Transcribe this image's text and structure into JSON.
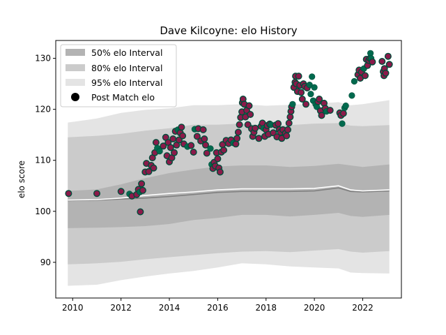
{
  "chart_data": {
    "type": "scatter",
    "title": "Dave Kilcoyne: elo History",
    "xlabel": "",
    "ylabel": "elo score",
    "xlim": [
      2009.3,
      2023.6
    ],
    "ylim": [
      83.0,
      133.5
    ],
    "x_ticks": [
      2010,
      2012,
      2014,
      2016,
      2018,
      2020,
      2022
    ],
    "y_ticks": [
      90,
      100,
      110,
      120,
      130
    ],
    "legend": {
      "position": "top-left",
      "entries": [
        "50% elo Interval",
        "80% elo Interval",
        "95% elo Interval",
        "Post Match elo"
      ]
    },
    "colors": {
      "win": "#006a4e",
      "loss": "#8b1a4a",
      "band50": "#b3b3b3",
      "band80": "#cbcbcb",
      "band95": "#e4e4e4",
      "median": "#808080",
      "mean": "#ffffff"
    },
    "band_x": [
      2009.8,
      2011.0,
      2012.0,
      2013.0,
      2014.0,
      2015.0,
      2016.0,
      2017.0,
      2018.0,
      2019.0,
      2020.0,
      2021.0,
      2021.5,
      2022.0,
      2023.1
    ],
    "band_50_upper": [
      104.0,
      104.3,
      105.3,
      106.5,
      107.5,
      108.2,
      108.8,
      109.0,
      109.0,
      108.7,
      108.9,
      109.3,
      109.0,
      108.7,
      109.2
    ],
    "band_50_lower": [
      96.7,
      96.8,
      96.9,
      97.1,
      97.5,
      98.3,
      98.7,
      99.3,
      99.3,
      99.0,
      99.3,
      99.7,
      99.1,
      98.9,
      99.3
    ],
    "band_80_upper": [
      114.5,
      114.8,
      115.2,
      115.8,
      116.3,
      117.0,
      117.0,
      117.2,
      116.8,
      116.9,
      117.2,
      117.3,
      116.8,
      116.7,
      116.9
    ],
    "band_80_lower": [
      89.6,
      89.8,
      90.1,
      90.6,
      91.0,
      91.4,
      91.8,
      92.1,
      92.2,
      92.0,
      92.3,
      92.6,
      92.1,
      91.9,
      92.2
    ],
    "band_95_upper": [
      117.4,
      118.2,
      119.3,
      119.9,
      120.2,
      120.8,
      120.8,
      121.0,
      120.7,
      120.9,
      121.1,
      121.4,
      120.8,
      121.0,
      121.8
    ],
    "band_95_lower": [
      85.4,
      85.6,
      86.5,
      87.2,
      87.8,
      88.3,
      89.0,
      89.8,
      89.6,
      89.2,
      89.0,
      88.8,
      88.0,
      87.9,
      87.8
    ],
    "median_line": [
      102.1,
      102.2,
      102.4,
      102.6,
      102.9,
      103.3,
      103.7,
      103.9,
      103.9,
      103.9,
      104.0,
      104.6,
      103.9,
      103.8,
      104.0
    ],
    "mean_line": [
      102.2,
      102.3,
      102.6,
      103.1,
      103.5,
      103.8,
      104.2,
      104.4,
      104.4,
      104.4,
      104.5,
      105.0,
      104.2,
      104.0,
      104.2
    ],
    "points": [
      {
        "x": 2009.83,
        "y": 103.5,
        "result": "loss"
      },
      {
        "x": 2011.0,
        "y": 103.5,
        "result": "loss"
      },
      {
        "x": 2012.0,
        "y": 103.9,
        "result": "loss"
      },
      {
        "x": 2012.35,
        "y": 103.4,
        "result": "win"
      },
      {
        "x": 2012.45,
        "y": 103.0,
        "result": "loss"
      },
      {
        "x": 2012.65,
        "y": 103.3,
        "result": "loss"
      },
      {
        "x": 2012.72,
        "y": 104.3,
        "result": "loss"
      },
      {
        "x": 2012.78,
        "y": 103.8,
        "result": "win"
      },
      {
        "x": 2012.8,
        "y": 99.9,
        "result": "loss"
      },
      {
        "x": 2012.85,
        "y": 105.4,
        "result": "loss"
      },
      {
        "x": 2012.9,
        "y": 104.1,
        "result": "loss"
      },
      {
        "x": 2013.0,
        "y": 107.7,
        "result": "loss"
      },
      {
        "x": 2013.05,
        "y": 109.4,
        "result": "loss"
      },
      {
        "x": 2013.15,
        "y": 107.8,
        "result": "loss"
      },
      {
        "x": 2013.25,
        "y": 109.0,
        "result": "loss"
      },
      {
        "x": 2013.3,
        "y": 110.5,
        "result": "loss"
      },
      {
        "x": 2013.35,
        "y": 108.5,
        "result": "loss"
      },
      {
        "x": 2013.4,
        "y": 111.5,
        "result": "loss"
      },
      {
        "x": 2013.45,
        "y": 113.5,
        "result": "loss"
      },
      {
        "x": 2013.5,
        "y": 112.4,
        "result": "win"
      },
      {
        "x": 2013.6,
        "y": 111.8,
        "result": "win"
      },
      {
        "x": 2013.75,
        "y": 112.8,
        "result": "loss"
      },
      {
        "x": 2013.85,
        "y": 114.5,
        "result": "loss"
      },
      {
        "x": 2013.9,
        "y": 110.9,
        "result": "loss"
      },
      {
        "x": 2013.95,
        "y": 113.5,
        "result": "loss"
      },
      {
        "x": 2014.0,
        "y": 109.7,
        "result": "loss"
      },
      {
        "x": 2014.05,
        "y": 112.5,
        "result": "loss"
      },
      {
        "x": 2014.1,
        "y": 110.5,
        "result": "loss"
      },
      {
        "x": 2014.15,
        "y": 114.2,
        "result": "loss"
      },
      {
        "x": 2014.2,
        "y": 111.5,
        "result": "loss"
      },
      {
        "x": 2014.25,
        "y": 115.7,
        "result": "loss"
      },
      {
        "x": 2014.3,
        "y": 113.0,
        "result": "loss"
      },
      {
        "x": 2014.35,
        "y": 116.0,
        "result": "win"
      },
      {
        "x": 2014.4,
        "y": 114.0,
        "result": "loss"
      },
      {
        "x": 2014.45,
        "y": 115.4,
        "result": "loss"
      },
      {
        "x": 2014.5,
        "y": 116.5,
        "result": "loss"
      },
      {
        "x": 2014.55,
        "y": 114.8,
        "result": "loss"
      },
      {
        "x": 2014.6,
        "y": 113.2,
        "result": "loss"
      },
      {
        "x": 2014.75,
        "y": 112.7,
        "result": "win"
      },
      {
        "x": 2014.9,
        "y": 112.9,
        "result": "loss"
      },
      {
        "x": 2015.0,
        "y": 111.6,
        "result": "loss"
      },
      {
        "x": 2015.05,
        "y": 116.1,
        "result": "win"
      },
      {
        "x": 2015.15,
        "y": 114.7,
        "result": "loss"
      },
      {
        "x": 2015.2,
        "y": 116.2,
        "result": "loss"
      },
      {
        "x": 2015.3,
        "y": 113.8,
        "result": "loss"
      },
      {
        "x": 2015.4,
        "y": 116.0,
        "result": "loss"
      },
      {
        "x": 2015.45,
        "y": 114.2,
        "result": "loss"
      },
      {
        "x": 2015.5,
        "y": 113.0,
        "result": "loss"
      },
      {
        "x": 2015.55,
        "y": 111.4,
        "result": "loss"
      },
      {
        "x": 2015.7,
        "y": 112.3,
        "result": "win"
      },
      {
        "x": 2015.75,
        "y": 109.2,
        "result": "win"
      },
      {
        "x": 2015.8,
        "y": 108.4,
        "result": "loss"
      },
      {
        "x": 2015.85,
        "y": 109.6,
        "result": "loss"
      },
      {
        "x": 2015.9,
        "y": 108.9,
        "result": "loss"
      },
      {
        "x": 2015.95,
        "y": 111.5,
        "result": "loss"
      },
      {
        "x": 2016.0,
        "y": 110.3,
        "result": "loss"
      },
      {
        "x": 2016.05,
        "y": 108.5,
        "result": "loss"
      },
      {
        "x": 2016.1,
        "y": 107.7,
        "result": "loss"
      },
      {
        "x": 2016.15,
        "y": 111.6,
        "result": "loss"
      },
      {
        "x": 2016.2,
        "y": 113.1,
        "result": "loss"
      },
      {
        "x": 2016.25,
        "y": 112.0,
        "result": "loss"
      },
      {
        "x": 2016.35,
        "y": 113.9,
        "result": "loss"
      },
      {
        "x": 2016.45,
        "y": 113.3,
        "result": "loss"
      },
      {
        "x": 2016.55,
        "y": 114.0,
        "result": "loss"
      },
      {
        "x": 2016.65,
        "y": 113.4,
        "result": "win"
      },
      {
        "x": 2016.75,
        "y": 113.2,
        "result": "loss"
      },
      {
        "x": 2016.8,
        "y": 114.3,
        "result": "loss"
      },
      {
        "x": 2016.85,
        "y": 115.5,
        "result": "loss"
      },
      {
        "x": 2016.9,
        "y": 117.0,
        "result": "loss"
      },
      {
        "x": 2016.95,
        "y": 118.4,
        "result": "loss"
      },
      {
        "x": 2017.0,
        "y": 119.5,
        "result": "loss"
      },
      {
        "x": 2017.02,
        "y": 121.3,
        "result": "loss"
      },
      {
        "x": 2017.05,
        "y": 122.0,
        "result": "loss"
      },
      {
        "x": 2017.1,
        "y": 121.0,
        "result": "loss"
      },
      {
        "x": 2017.15,
        "y": 118.5,
        "result": "loss"
      },
      {
        "x": 2017.2,
        "y": 119.8,
        "result": "loss"
      },
      {
        "x": 2017.25,
        "y": 117.0,
        "result": "loss"
      },
      {
        "x": 2017.3,
        "y": 120.7,
        "result": "loss"
      },
      {
        "x": 2017.35,
        "y": 119.0,
        "result": "loss"
      },
      {
        "x": 2017.4,
        "y": 116.2,
        "result": "loss"
      },
      {
        "x": 2017.45,
        "y": 114.7,
        "result": "loss"
      },
      {
        "x": 2017.5,
        "y": 115.5,
        "result": "loss"
      },
      {
        "x": 2017.55,
        "y": 116.3,
        "result": "loss"
      },
      {
        "x": 2017.7,
        "y": 114.3,
        "result": "loss"
      },
      {
        "x": 2017.8,
        "y": 116.7,
        "result": "loss"
      },
      {
        "x": 2017.85,
        "y": 117.3,
        "result": "loss"
      },
      {
        "x": 2017.9,
        "y": 116.3,
        "result": "win"
      },
      {
        "x": 2017.95,
        "y": 114.7,
        "result": "loss"
      },
      {
        "x": 2018.0,
        "y": 116.0,
        "result": "loss"
      },
      {
        "x": 2018.05,
        "y": 116.8,
        "result": "loss"
      },
      {
        "x": 2018.1,
        "y": 115.1,
        "result": "loss"
      },
      {
        "x": 2018.15,
        "y": 117.1,
        "result": "loss"
      },
      {
        "x": 2018.2,
        "y": 117.0,
        "result": "win"
      },
      {
        "x": 2018.3,
        "y": 115.4,
        "result": "loss"
      },
      {
        "x": 2018.4,
        "y": 116.9,
        "result": "loss"
      },
      {
        "x": 2018.45,
        "y": 114.6,
        "result": "loss"
      },
      {
        "x": 2018.5,
        "y": 117.2,
        "result": "loss"
      },
      {
        "x": 2018.55,
        "y": 116.0,
        "result": "loss"
      },
      {
        "x": 2018.6,
        "y": 115.5,
        "result": "loss"
      },
      {
        "x": 2018.65,
        "y": 114.3,
        "result": "loss"
      },
      {
        "x": 2018.7,
        "y": 116.0,
        "result": "loss"
      },
      {
        "x": 2018.8,
        "y": 115.3,
        "result": "loss"
      },
      {
        "x": 2018.85,
        "y": 114.8,
        "result": "loss"
      },
      {
        "x": 2018.9,
        "y": 116.0,
        "result": "loss"
      },
      {
        "x": 2018.95,
        "y": 117.3,
        "result": "loss"
      },
      {
        "x": 2019.0,
        "y": 118.5,
        "result": "loss"
      },
      {
        "x": 2019.03,
        "y": 119.6,
        "result": "loss"
      },
      {
        "x": 2019.06,
        "y": 120.5,
        "result": "loss"
      },
      {
        "x": 2019.1,
        "y": 121.0,
        "result": "win"
      },
      {
        "x": 2019.15,
        "y": 124.3,
        "result": "loss"
      },
      {
        "x": 2019.2,
        "y": 125.3,
        "result": "loss"
      },
      {
        "x": 2019.22,
        "y": 126.5,
        "result": "loss"
      },
      {
        "x": 2019.25,
        "y": 125.0,
        "result": "loss"
      },
      {
        "x": 2019.3,
        "y": 123.5,
        "result": "loss"
      },
      {
        "x": 2019.35,
        "y": 126.5,
        "result": "loss"
      },
      {
        "x": 2019.4,
        "y": 124.7,
        "result": "loss"
      },
      {
        "x": 2019.45,
        "y": 123.3,
        "result": "loss"
      },
      {
        "x": 2019.5,
        "y": 122.0,
        "result": "loss"
      },
      {
        "x": 2019.55,
        "y": 125.0,
        "result": "loss"
      },
      {
        "x": 2019.6,
        "y": 124.5,
        "result": "loss"
      },
      {
        "x": 2019.65,
        "y": 121.0,
        "result": "loss"
      },
      {
        "x": 2019.7,
        "y": 124.2,
        "result": "loss"
      },
      {
        "x": 2019.8,
        "y": 124.8,
        "result": "win"
      },
      {
        "x": 2019.85,
        "y": 123.0,
        "result": "win"
      },
      {
        "x": 2019.9,
        "y": 126.4,
        "result": "win"
      },
      {
        "x": 2019.95,
        "y": 121.7,
        "result": "win"
      },
      {
        "x": 2020.0,
        "y": 124.3,
        "result": "win"
      },
      {
        "x": 2020.05,
        "y": 121.0,
        "result": "win"
      },
      {
        "x": 2020.1,
        "y": 120.5,
        "result": "win"
      },
      {
        "x": 2020.15,
        "y": 121.5,
        "result": "loss"
      },
      {
        "x": 2020.2,
        "y": 122.0,
        "result": "loss"
      },
      {
        "x": 2020.25,
        "y": 119.7,
        "result": "loss"
      },
      {
        "x": 2020.3,
        "y": 118.8,
        "result": "loss"
      },
      {
        "x": 2020.4,
        "y": 121.2,
        "result": "loss"
      },
      {
        "x": 2020.45,
        "y": 120.2,
        "result": "loss"
      },
      {
        "x": 2020.5,
        "y": 119.6,
        "result": "win"
      },
      {
        "x": 2020.65,
        "y": 119.8,
        "result": "loss"
      },
      {
        "x": 2021.05,
        "y": 119.3,
        "result": "loss"
      },
      {
        "x": 2021.1,
        "y": 118.8,
        "result": "loss"
      },
      {
        "x": 2021.15,
        "y": 117.2,
        "result": "win"
      },
      {
        "x": 2021.2,
        "y": 119.2,
        "result": "loss"
      },
      {
        "x": 2021.25,
        "y": 120.3,
        "result": "win"
      },
      {
        "x": 2021.3,
        "y": 120.7,
        "result": "win"
      },
      {
        "x": 2021.55,
        "y": 122.7,
        "result": "win"
      },
      {
        "x": 2021.65,
        "y": 125.5,
        "result": "win"
      },
      {
        "x": 2021.8,
        "y": 126.8,
        "result": "loss"
      },
      {
        "x": 2021.85,
        "y": 127.7,
        "result": "loss"
      },
      {
        "x": 2021.9,
        "y": 126.1,
        "result": "loss"
      },
      {
        "x": 2021.95,
        "y": 127.3,
        "result": "loss"
      },
      {
        "x": 2022.05,
        "y": 128.0,
        "result": "win"
      },
      {
        "x": 2022.1,
        "y": 126.6,
        "result": "loss"
      },
      {
        "x": 2022.15,
        "y": 129.8,
        "result": "loss"
      },
      {
        "x": 2022.2,
        "y": 128.6,
        "result": "loss"
      },
      {
        "x": 2022.25,
        "y": 129.6,
        "result": "loss"
      },
      {
        "x": 2022.3,
        "y": 130.0,
        "result": "loss"
      },
      {
        "x": 2022.32,
        "y": 131.0,
        "result": "win"
      },
      {
        "x": 2022.35,
        "y": 130.0,
        "result": "win"
      },
      {
        "x": 2022.4,
        "y": 129.3,
        "result": "loss"
      },
      {
        "x": 2022.8,
        "y": 129.4,
        "result": "loss"
      },
      {
        "x": 2022.85,
        "y": 127.4,
        "result": "loss"
      },
      {
        "x": 2022.88,
        "y": 126.6,
        "result": "loss"
      },
      {
        "x": 2022.9,
        "y": 128.0,
        "result": "loss"
      },
      {
        "x": 2022.95,
        "y": 127.1,
        "result": "loss"
      },
      {
        "x": 2023.05,
        "y": 130.4,
        "result": "loss"
      },
      {
        "x": 2023.1,
        "y": 128.8,
        "result": "loss"
      }
    ]
  }
}
